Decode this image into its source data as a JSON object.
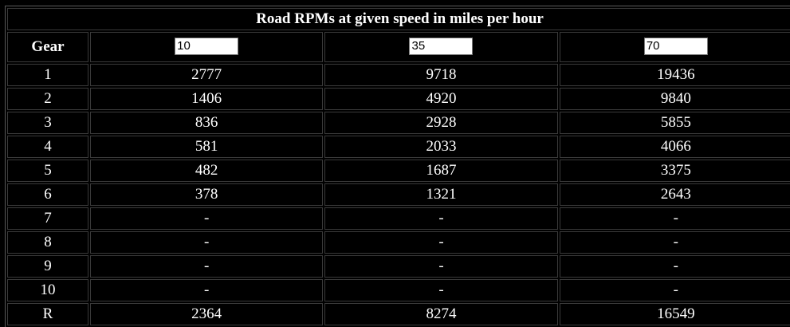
{
  "table": {
    "title": "Road RPMs at given speed in miles per hour",
    "gear_header": "Gear",
    "speeds": [
      "10",
      "35",
      "70"
    ],
    "rows": [
      {
        "gear": "1",
        "values": [
          "2777",
          "9718",
          "19436"
        ]
      },
      {
        "gear": "2",
        "values": [
          "1406",
          "4920",
          "9840"
        ]
      },
      {
        "gear": "3",
        "values": [
          "836",
          "2928",
          "5855"
        ]
      },
      {
        "gear": "4",
        "values": [
          "581",
          "2033",
          "4066"
        ]
      },
      {
        "gear": "5",
        "values": [
          "482",
          "1687",
          "3375"
        ]
      },
      {
        "gear": "6",
        "values": [
          "378",
          "1321",
          "2643"
        ]
      },
      {
        "gear": "7",
        "values": [
          "-",
          "-",
          "-"
        ]
      },
      {
        "gear": "8",
        "values": [
          "-",
          "-",
          "-"
        ]
      },
      {
        "gear": "9",
        "values": [
          "-",
          "-",
          "-"
        ]
      },
      {
        "gear": "10",
        "values": [
          "-",
          "-",
          "-"
        ]
      },
      {
        "gear": "R",
        "values": [
          "2364",
          "8274",
          "16549"
        ]
      }
    ]
  }
}
